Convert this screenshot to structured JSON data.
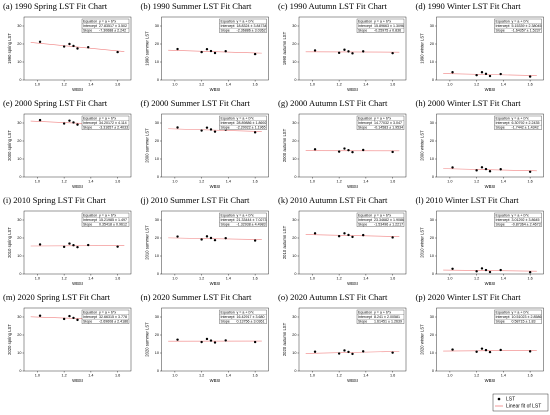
{
  "chart_data": [
    {
      "type": "scatter",
      "title": "(a) 1990 Spring LST Fit Chart",
      "x_label": "WBSI",
      "y_label": "1990 spring LST",
      "x": [
        1.02,
        1.2,
        1.24,
        1.27,
        1.3,
        1.38,
        1.6
      ],
      "y": [
        21.2,
        18.6,
        20.0,
        18.9,
        17.5,
        18.2,
        15.5
      ],
      "intercept": 27.83517,
      "intercept_label": "27.83517 ± 3.502",
      "slope": -7.30688,
      "slope_label": "-7.30688 ± 2.242",
      "point_color": "#000000",
      "fit_color": "#f08080",
      "xlim": [
        0.9,
        1.7
      ],
      "xticks": [
        {
          "value": 1,
          "label": "1.0"
        },
        1.2,
        1.4,
        1.6
      ],
      "ylim": [
        0,
        35
      ],
      "yticks": [
        0,
        10,
        20,
        30
      ]
    },
    {
      "type": "scatter",
      "title": "(b) 1990 Summer LST Fit Chart",
      "x_label": "WBSI",
      "y_label": "1990 summer LST",
      "x": [
        1.02,
        1.2,
        1.24,
        1.27,
        1.3,
        1.38,
        1.6
      ],
      "y": [
        17.2,
        15.5,
        17.1,
        16.1,
        15.0,
        16.0,
        14.4
      ],
      "intercept": 18.8324,
      "intercept_label": "18.8324 ± 3.84734",
      "slope": -2.36886,
      "slope_label": "-2.36886 ± 3.0362",
      "point_color": "#000000",
      "fit_color": "#f08080",
      "xlim": [
        0.9,
        1.7
      ],
      "xticks": [
        {
          "value": 1,
          "label": "1.0"
        },
        1.2,
        1.4,
        1.6
      ],
      "ylim": [
        0,
        35
      ],
      "yticks": [
        0,
        10,
        20,
        30
      ]
    },
    {
      "type": "scatter",
      "title": "(c) 1990 Autumn LST Fit Chart",
      "x_label": "WBSI",
      "y_label": "1990 autumn LST",
      "x": [
        1.02,
        1.2,
        1.24,
        1.27,
        1.3,
        1.38,
        1.6
      ],
      "y": [
        16.4,
        15.1,
        16.8,
        15.9,
        14.8,
        15.9,
        14.9
      ],
      "intercept": 15.89663,
      "intercept_label": "15.89663 ± 1.3096",
      "slope": -0.25975,
      "slope_label": "-0.25975 ± 0.836",
      "point_color": "#000000",
      "fit_color": "#f08080",
      "xlim": [
        0.9,
        1.7
      ],
      "xticks": [
        {
          "value": 1,
          "label": "1.0"
        },
        1.2,
        1.4,
        1.6
      ],
      "ylim": [
        0,
        35
      ],
      "yticks": [
        0,
        10,
        20,
        30
      ]
    },
    {
      "type": "scatter",
      "title": "(d) 1990 Winter LST Fit Chart",
      "x_label": "WBSI",
      "y_label": "1990 winter LST",
      "x": [
        1.02,
        1.2,
        1.24,
        1.27,
        1.3,
        1.38,
        1.6
      ],
      "y": [
        4.3,
        2.7,
        4.3,
        3.4,
        2.2,
        3.3,
        1.9
      ],
      "intercept": 5.15339,
      "intercept_label": "5.15339 ± 2.38045",
      "slope": -1.64357,
      "slope_label": "-1.64357 ± 1.5237",
      "point_color": "#000000",
      "fit_color": "#f08080",
      "xlim": [
        0.9,
        1.7
      ],
      "xticks": [
        {
          "value": 1,
          "label": "1.0"
        },
        1.2,
        1.4,
        1.6
      ],
      "ylim": [
        0,
        35
      ],
      "yticks": [
        0,
        10,
        20,
        30
      ]
    },
    {
      "type": "scatter",
      "title": "(e) 2000 Spring LST Fit Chart",
      "x_label": "WBSI",
      "y_label": "2000 spring LST",
      "x": [
        1.02,
        1.2,
        1.24,
        1.27,
        1.3,
        1.38,
        1.6
      ],
      "y": [
        31.6,
        29.7,
        31.3,
        30.3,
        29.1,
        30.0,
        28.3
      ],
      "intercept": 34.20172,
      "intercept_label": "34.20172 ± 4.114",
      "slope": -3.31657,
      "slope_label": "-3.31657 ± 2.4033",
      "point_color": "#000000",
      "fit_color": "#f08080",
      "xlim": [
        0.9,
        1.7
      ],
      "xticks": [
        {
          "value": 1,
          "label": "1.0"
        },
        1.2,
        1.4,
        1.6
      ],
      "ylim": [
        0,
        35
      ],
      "yticks": [
        0,
        10,
        20,
        30
      ]
    },
    {
      "type": "scatter",
      "title": "(f) 2000 Summer LST Fit Chart",
      "x_label": "WBSI",
      "y_label": "2000 summer LST",
      "x": [
        1.02,
        1.2,
        1.24,
        1.27,
        1.3,
        1.38,
        1.6
      ],
      "y": [
        27.5,
        25.8,
        27.4,
        26.4,
        25.2,
        26.3,
        24.8
      ],
      "intercept": 28.89886,
      "intercept_label": "28.89886 ± 1.8692",
      "slope": -2.20022,
      "slope_label": "-2.20022 ± 1.1965",
      "point_color": "#000000",
      "fit_color": "#f08080",
      "xlim": [
        0.9,
        1.7
      ],
      "xticks": [
        {
          "value": 1,
          "label": "1.0"
        },
        1.2,
        1.4,
        1.6
      ],
      "ylim": [
        0,
        35
      ],
      "yticks": [
        0,
        10,
        20,
        30
      ]
    },
    {
      "type": "scatter",
      "title": "(g) 2000 Autumn LST Fit Chart",
      "x_label": "WBSI",
      "y_label": "2000 autumn LST",
      "x": [
        1.02,
        1.2,
        1.24,
        1.27,
        1.3,
        1.38,
        1.6
      ],
      "y": [
        15.4,
        14.1,
        15.8,
        14.9,
        13.8,
        15.0,
        13.9
      ],
      "intercept": 14.77032,
      "intercept_label": "14.77032 ± 3.047",
      "slope": -0.14583,
      "slope_label": "-0.14583 ± 1.9534",
      "point_color": "#000000",
      "fit_color": "#f08080",
      "xlim": [
        0.9,
        1.7
      ],
      "xticks": [
        {
          "value": 1,
          "label": "1.0"
        },
        1.2,
        1.4,
        1.6
      ],
      "ylim": [
        0,
        35
      ],
      "yticks": [
        0,
        10,
        20,
        30
      ]
    },
    {
      "type": "scatter",
      "title": "(h) 2000 Winter LST Fit Chart",
      "x_label": "WBSI",
      "y_label": "2000 winter LST",
      "x": [
        1.02,
        1.2,
        1.24,
        1.27,
        1.3,
        1.38,
        1.6
      ],
      "y": [
        5.3,
        3.7,
        5.4,
        4.4,
        3.2,
        4.3,
        2.9
      ],
      "intercept": 6.30792,
      "intercept_label": "6.30792 ± 2.2435",
      "slope": -1.7442,
      "slope_label": "-1.7442 ± 1.4342",
      "point_color": "#000000",
      "fit_color": "#f08080",
      "xlim": [
        0.9,
        1.7
      ],
      "xticks": [
        {
          "value": 1,
          "label": "1.0"
        },
        1.2,
        1.4,
        1.6
      ],
      "ylim": [
        0,
        35
      ],
      "yticks": [
        0,
        10,
        20,
        30
      ]
    },
    {
      "type": "scatter",
      "title": "(i) 2010 Spring LST Fit Chart",
      "x_label": "WBSI",
      "y_label": "2010 spring LST",
      "x": [
        1.02,
        1.2,
        1.24,
        1.27,
        1.3,
        1.38,
        1.6
      ],
      "y": [
        16.4,
        15.1,
        16.9,
        16.0,
        14.9,
        16.1,
        15.2
      ],
      "intercept": 15.21985,
      "intercept_label": "15.21985 ± 1.497",
      "slope": 0.35418,
      "slope_label": "0.35418 ± 0.9612",
      "point_color": "#000000",
      "fit_color": "#f08080",
      "xlim": [
        0.9,
        1.7
      ],
      "xticks": [
        {
          "value": 1,
          "label": "1.0"
        },
        1.2,
        1.4,
        1.6
      ],
      "ylim": [
        0,
        35
      ],
      "yticks": [
        0,
        10,
        20,
        30
      ]
    },
    {
      "type": "scatter",
      "title": "(j) 2010 Summer LST Fit Chart",
      "x_label": "WBSI",
      "y_label": "2010 summer LST",
      "x": [
        1.02,
        1.2,
        1.24,
        1.27,
        1.3,
        1.38,
        1.6
      ],
      "y": [
        20.8,
        19.2,
        20.9,
        20.0,
        18.8,
        19.9,
        18.6
      ],
      "intercept": 21.33444,
      "intercept_label": "21.33444 ± 7.0273",
      "slope": -1.32938,
      "slope_label": "-1.32938 ± 4.4983",
      "point_color": "#000000",
      "fit_color": "#f08080",
      "xlim": [
        0.9,
        1.7
      ],
      "xticks": [
        {
          "value": 1,
          "label": "1.0"
        },
        1.2,
        1.4,
        1.6
      ],
      "ylim": [
        0,
        35
      ],
      "yticks": [
        0,
        10,
        20,
        30
      ]
    },
    {
      "type": "scatter",
      "title": "(k) 2010 Autumn LST Fit Chart",
      "x_label": "WBSI",
      "y_label": "2010 autumn LST",
      "x": [
        1.02,
        1.2,
        1.24,
        1.27,
        1.3,
        1.38,
        1.6
      ],
      "y": [
        22.6,
        21.0,
        22.6,
        21.7,
        20.6,
        21.6,
        20.3
      ],
      "intercept": 23.34682,
      "intercept_label": "23.34682 ± 1.9086",
      "slope": -1.53496,
      "slope_label": "-1.53496 ± 1.2217",
      "point_color": "#000000",
      "fit_color": "#f08080",
      "xlim": [
        0.9,
        1.7
      ],
      "xticks": [
        {
          "value": 1,
          "label": "1.0"
        },
        1.2,
        1.4,
        1.6
      ],
      "ylim": [
        0,
        35
      ],
      "yticks": [
        0,
        10,
        20,
        30
      ]
    },
    {
      "type": "scatter",
      "title": "(l) 2010 Winter LST Fit Chart",
      "x_label": "WBSI",
      "y_label": "2010 winter LST",
      "x": [
        1.02,
        1.2,
        1.24,
        1.27,
        1.3,
        1.38,
        1.6
      ],
      "y": [
        2.9,
        1.5,
        3.1,
        2.2,
        1.1,
        2.2,
        1.0
      ],
      "intercept": 3.01292,
      "intercept_label": "3.01292 ± 3.8645",
      "slope": -0.87364,
      "slope_label": "-0.87364 ± 2.4673",
      "point_color": "#000000",
      "fit_color": "#f08080",
      "xlim": [
        0.9,
        1.7
      ],
      "xticks": [
        {
          "value": 1,
          "label": "1.0"
        },
        1.2,
        1.4,
        1.6
      ],
      "ylim": [
        0,
        35
      ],
      "yticks": [
        0,
        10,
        20,
        30
      ]
    },
    {
      "type": "scatter",
      "title": "(m) 2020 Spring LST Fit Chart",
      "x_label": "WBSI",
      "y_label": "2020 spring LST",
      "x": [
        1.02,
        1.2,
        1.24,
        1.27,
        1.3,
        1.38,
        1.6
      ],
      "y": [
        30.7,
        28.9,
        30.5,
        29.5,
        28.4,
        29.3,
        27.8
      ],
      "intercept": 32.66315,
      "intercept_label": "32.66315 ± 3.778",
      "slope": -2.69608,
      "slope_label": "-2.69608 ± 2.4186",
      "point_color": "#000000",
      "fit_color": "#f08080",
      "xlim": [
        0.9,
        1.7
      ],
      "xticks": [
        {
          "value": 1,
          "label": "1.0"
        },
        1.2,
        1.4,
        1.6
      ],
      "ylim": [
        0,
        35
      ],
      "yticks": [
        0,
        10,
        20,
        30
      ]
    },
    {
      "type": "scatter",
      "title": "(n) 2020 Summer LST Fit Chart",
      "x_label": "WBSI",
      "y_label": "2020 summer LST",
      "x": [
        1.02,
        1.2,
        1.24,
        1.27,
        1.3,
        1.38,
        1.6
      ],
      "y": [
        17.4,
        16.1,
        17.8,
        16.9,
        15.8,
        17.0,
        16.1
      ],
      "intercept": 16.42917,
      "intercept_label": "16.42917 ± 3.680",
      "slope": 0.13756,
      "slope_label": "0.13756 ± 3.0361",
      "point_color": "#000000",
      "fit_color": "#f08080",
      "xlim": [
        0.9,
        1.7
      ],
      "xticks": [
        {
          "value": 1,
          "label": "1.0"
        },
        1.2,
        1.4,
        1.6
      ],
      "ylim": [
        0,
        35
      ],
      "yticks": [
        0,
        10,
        20,
        30
      ]
    },
    {
      "type": "scatter",
      "title": "(o) 2020 Autumn LST Fit Chart",
      "x_label": "WBSI",
      "y_label": "2020 autumn LST",
      "x": [
        1.02,
        1.2,
        1.24,
        1.27,
        1.3,
        1.38,
        1.6
      ],
      "y": [
        10.7,
        9.7,
        11.4,
        10.6,
        9.5,
        10.9,
        10.2
      ],
      "intercept": 8.241,
      "intercept_label": "8.241 ± 2.00581",
      "slope": 1.61451,
      "slope_label": "1.61451 ± 1.2639",
      "point_color": "#000000",
      "fit_color": "#f08080",
      "xlim": [
        0.9,
        1.7
      ],
      "xticks": [
        {
          "value": 1,
          "label": "1.0"
        },
        1.2,
        1.4,
        1.6
      ],
      "ylim": [
        0,
        35
      ],
      "yticks": [
        0,
        10,
        20,
        30
      ]
    },
    {
      "type": "scatter",
      "title": "(p) 2020 Winter LST Fit Chart",
      "x_label": "WBSI",
      "y_label": "2020 winter LST",
      "x": [
        1.02,
        1.2,
        1.24,
        1.27,
        1.3,
        1.38,
        1.6
      ],
      "y": [
        11.9,
        10.7,
        12.4,
        11.6,
        10.5,
        11.7,
        10.9
      ],
      "intercept": 10.51023,
      "intercept_label": "10.51023 ± 2.8586",
      "slope": 0.58715,
      "slope_label": "0.58715 ± 1.83",
      "point_color": "#000000",
      "fit_color": "#f08080",
      "xlim": [
        0.9,
        1.7
      ],
      "xticks": [
        {
          "value": 1,
          "label": "1.0"
        },
        1.2,
        1.4,
        1.6
      ],
      "ylim": [
        0,
        35
      ],
      "yticks": [
        0,
        10,
        20,
        30
      ]
    }
  ],
  "fit_box": {
    "equation": "Equation",
    "formula": "y = a + b*x",
    "intercept": "Intercept",
    "slope": "Slope"
  },
  "legend": {
    "items": [
      "LST",
      "Linear fit of LST"
    ]
  }
}
